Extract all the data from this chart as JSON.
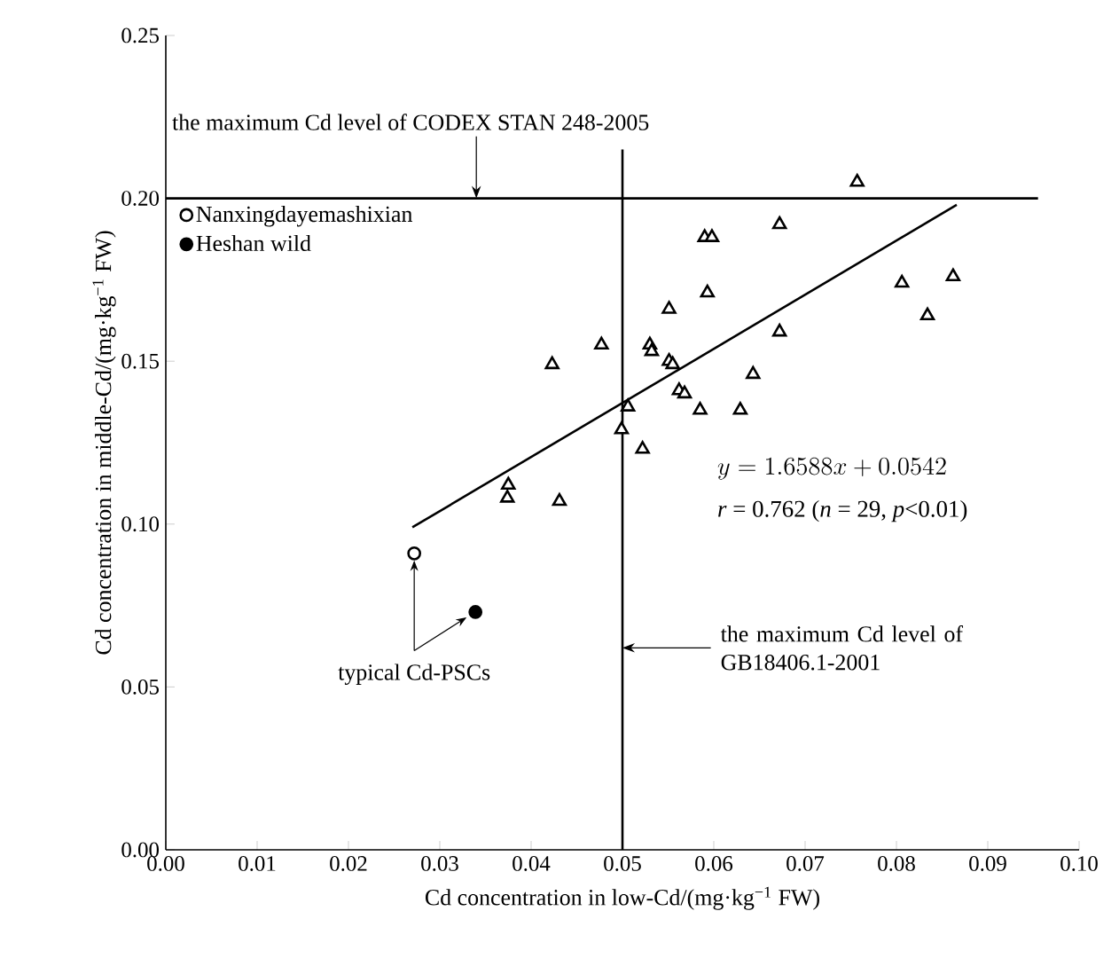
{
  "chart_data": {
    "type": "scatter",
    "xlabel": "Cd concentration in low-Cd/(mg·kg$^{−1}$ FW)",
    "ylabel": "Cd concentration in middle-Cd/(mg·kg$^{−1}$ FW)",
    "xlim": [
      0,
      0.1
    ],
    "ylim": [
      0,
      0.25
    ],
    "xticks": [
      {
        "value": 0,
        "label": "0.00"
      },
      {
        "value": 0.01,
        "label": "0.01"
      },
      {
        "value": 0.02,
        "label": "0.02"
      },
      {
        "value": 0.03,
        "label": "0.03"
      },
      {
        "value": 0.04,
        "label": "0.04"
      },
      {
        "value": 0.05,
        "label": "0.05"
      },
      {
        "value": 0.06,
        "label": "0.06"
      },
      {
        "value": 0.07,
        "label": "0.07"
      },
      {
        "value": 0.08,
        "label": "0.08"
      },
      {
        "value": 0.09,
        "label": "0.09"
      },
      {
        "value": 0.1,
        "label": "0.10"
      }
    ],
    "yticks": [
      {
        "value": 0,
        "label": "0.00"
      },
      {
        "value": 0.05,
        "label": "0.05"
      },
      {
        "value": 0.1,
        "label": "0.10"
      },
      {
        "value": 0.15,
        "label": "0.15"
      },
      {
        "value": 0.2,
        "label": "0.20"
      },
      {
        "value": 0.25,
        "label": "0.25"
      }
    ],
    "series": [
      {
        "type": "scatter",
        "marker": "triangle",
        "color": "#ffffff",
        "x": [
          0.0757,
          0.059,
          0.0598,
          0.0672,
          0.0806,
          0.0862,
          0.0834,
          0.0593,
          0.0551,
          0.0672,
          0.0423,
          0.0477,
          0.053,
          0.0532,
          0.0551,
          0.0555,
          0.0643,
          0.0562,
          0.0568,
          0.0585,
          0.0629,
          0.0506,
          0.0499,
          0.0522,
          0.0431,
          0.0375,
          0.0374
        ],
        "values": [
          0.205,
          0.188,
          0.188,
          0.192,
          0.174,
          0.176,
          0.164,
          0.171,
          0.166,
          0.159,
          0.149,
          0.155,
          0.155,
          0.153,
          0.15,
          0.149,
          0.146,
          0.141,
          0.14,
          0.135,
          0.135,
          0.136,
          0.129,
          0.123,
          0.107,
          0.112,
          0.108
        ]
      },
      {
        "type": "scatter",
        "name": "Nanxingdayemashixian",
        "marker": "circle",
        "color": "#ffffff",
        "x": [
          0.0272
        ],
        "values": [
          0.091
        ]
      },
      {
        "type": "scatter",
        "name": "Heshan wild",
        "marker": "circle",
        "color": "#000000",
        "x": [
          0.0339
        ],
        "values": [
          0.073
        ]
      },
      {
        "type": "line",
        "color": "#000000",
        "x": [
          0.027,
          0.0866
        ],
        "values": [
          0.099,
          0.198
        ]
      }
    ],
    "ref_lines": [
      {
        "axis": "y",
        "value": 0.2,
        "label": "the maximum Cd level of CODEX STAN 248-2005"
      },
      {
        "axis": "x",
        "value": 0.05,
        "label": "the maximum Cd level of GB18406.1-2001"
      }
    ],
    "annotations": [
      {
        "text": "typical Cd-PSCs",
        "x": 0.0272,
        "y": 0.091
      },
      "y = 1.6588x+0.0542",
      "*r* = 0.762 (*n* = 29, *p*<0.01)"
    ],
    "legend": "top left",
    "grid": false
  }
}
